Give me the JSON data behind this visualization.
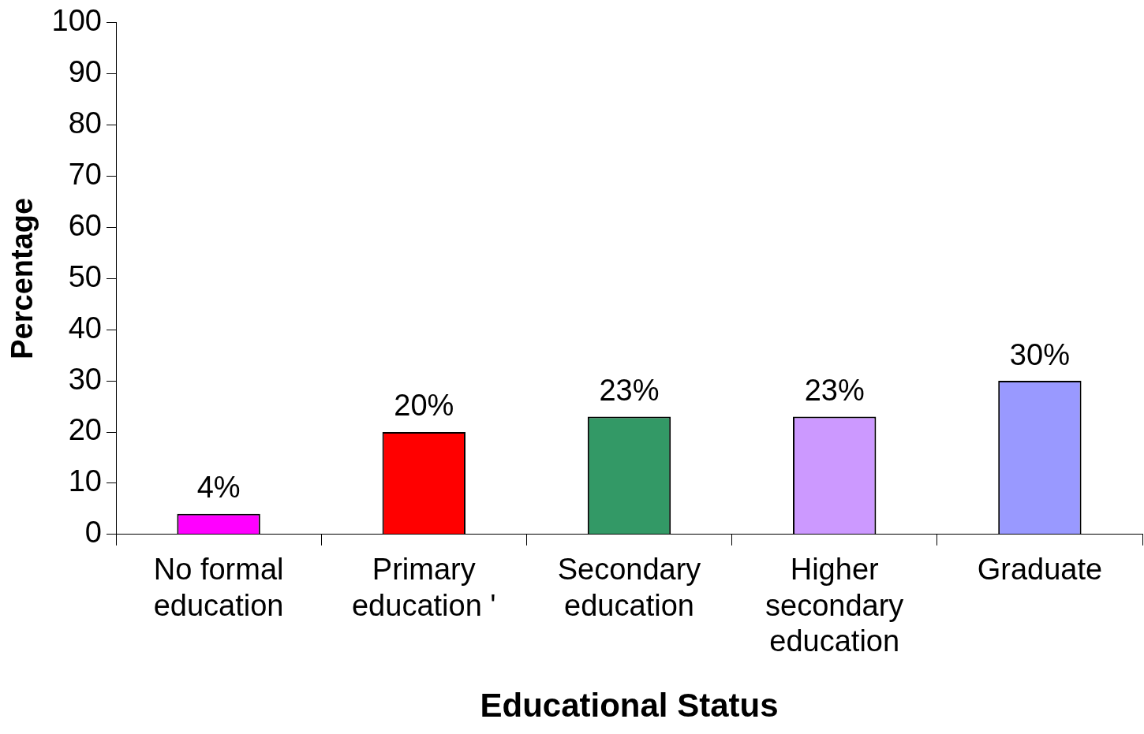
{
  "chart_data": {
    "type": "bar",
    "xlabel": "Educational Status",
    "ylabel": "Percentage",
    "categories": [
      "No formal education",
      "Primary education '",
      "Secondary education",
      "Higher secondary education",
      "Graduate"
    ],
    "values": [
      4,
      20,
      23,
      23,
      30
    ],
    "colors": [
      "#ff00ff",
      "#ff0000",
      "#339966",
      "#cc99ff",
      "#9999ff"
    ],
    "value_labels": [
      "4%",
      "20%",
      "23%",
      "23%",
      "30%"
    ],
    "ylim": [
      0,
      100
    ],
    "yticks": [
      0,
      10,
      20,
      30,
      40,
      50,
      60,
      70,
      80,
      90,
      100
    ],
    "grid": false,
    "legend": false
  }
}
